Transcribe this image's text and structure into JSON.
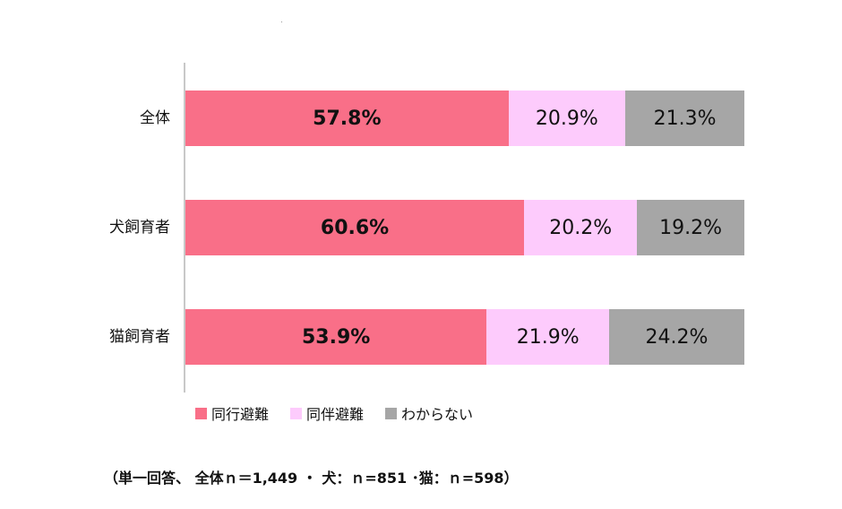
{
  "chart_data": {
    "type": "bar",
    "orientation": "horizontal",
    "stacked": true,
    "percent": true,
    "title": "",
    "xlabel": "",
    "ylabel": "",
    "xlim": [
      0,
      100
    ],
    "grid": false,
    "legend_position": "bottom",
    "categories": [
      "全体",
      "犬飼育者",
      "猫飼育者"
    ],
    "series": [
      {
        "name": "同行避難",
        "color": "#f96f88",
        "values": [
          57.8,
          60.6,
          53.9
        ],
        "labels": [
          "57.8%",
          "60.6%",
          "53.9%"
        ]
      },
      {
        "name": "同伴避難",
        "color": "#fdcbfc",
        "values": [
          20.9,
          20.2,
          21.9
        ],
        "labels": [
          "20.9%",
          "20.2%",
          "21.9%"
        ]
      },
      {
        "name": "わからない",
        "color": "#a6a6a6",
        "values": [
          21.3,
          19.2,
          24.2
        ],
        "labels": [
          "21.3%",
          "19.2%",
          "24.2%"
        ]
      }
    ],
    "footnote": "（単一回答、 全体ｎ＝1,449 ・ 犬：ｎ=851 ･猫：ｎ=598）"
  },
  "rows": [
    {
      "label": "全体",
      "segments": [
        "57.8%",
        "20.9%",
        "21.3%"
      ]
    },
    {
      "label": "犬飼育者",
      "segments": [
        "60.6%",
        "20.2%",
        "19.2%"
      ]
    },
    {
      "label": "猫飼育者",
      "segments": [
        "53.9%",
        "21.9%",
        "24.2%"
      ]
    }
  ],
  "legend": [
    {
      "label": "同行避難",
      "color": "#f96f88"
    },
    {
      "label": "同伴避難",
      "color": "#fdcbfc"
    },
    {
      "label": "わからない",
      "color": "#a6a6a6"
    }
  ],
  "footnote": "（単一回答、 全体ｎ＝1,449 ・ 犬：ｎ=851 ･猫：ｎ=598）"
}
